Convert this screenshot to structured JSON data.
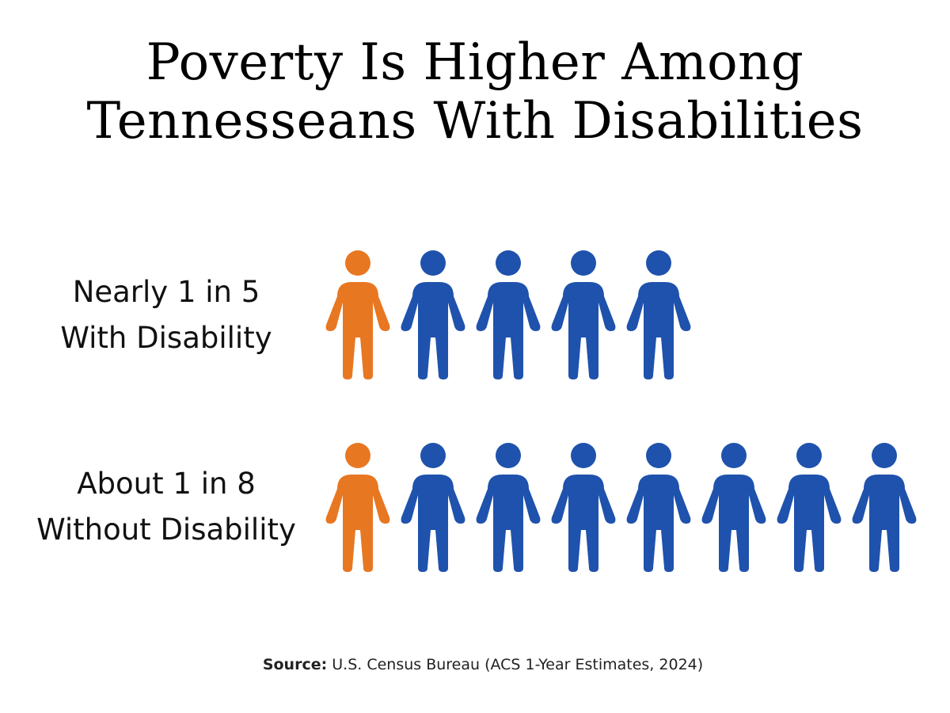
{
  "title_lines": [
    "Poverty Is Higher Among",
    "Tennesseans With Disabilities"
  ],
  "source": {
    "label": "Source:",
    "text": " U.S. Census Bureau (ACS 1-Year Estimates, 2024)"
  },
  "colors": {
    "highlight": "#e87722",
    "base": "#1f52ad"
  },
  "chart_data": {
    "type": "pictogram",
    "icon": "person-icon",
    "rows": [
      {
        "label_lines": [
          "Nearly 1 in 5",
          "With Disability"
        ],
        "highlighted": 1,
        "total": 5
      },
      {
        "label_lines": [
          "About 1 in 8",
          "Without Disability"
        ],
        "highlighted": 1,
        "total": 8
      }
    ]
  }
}
